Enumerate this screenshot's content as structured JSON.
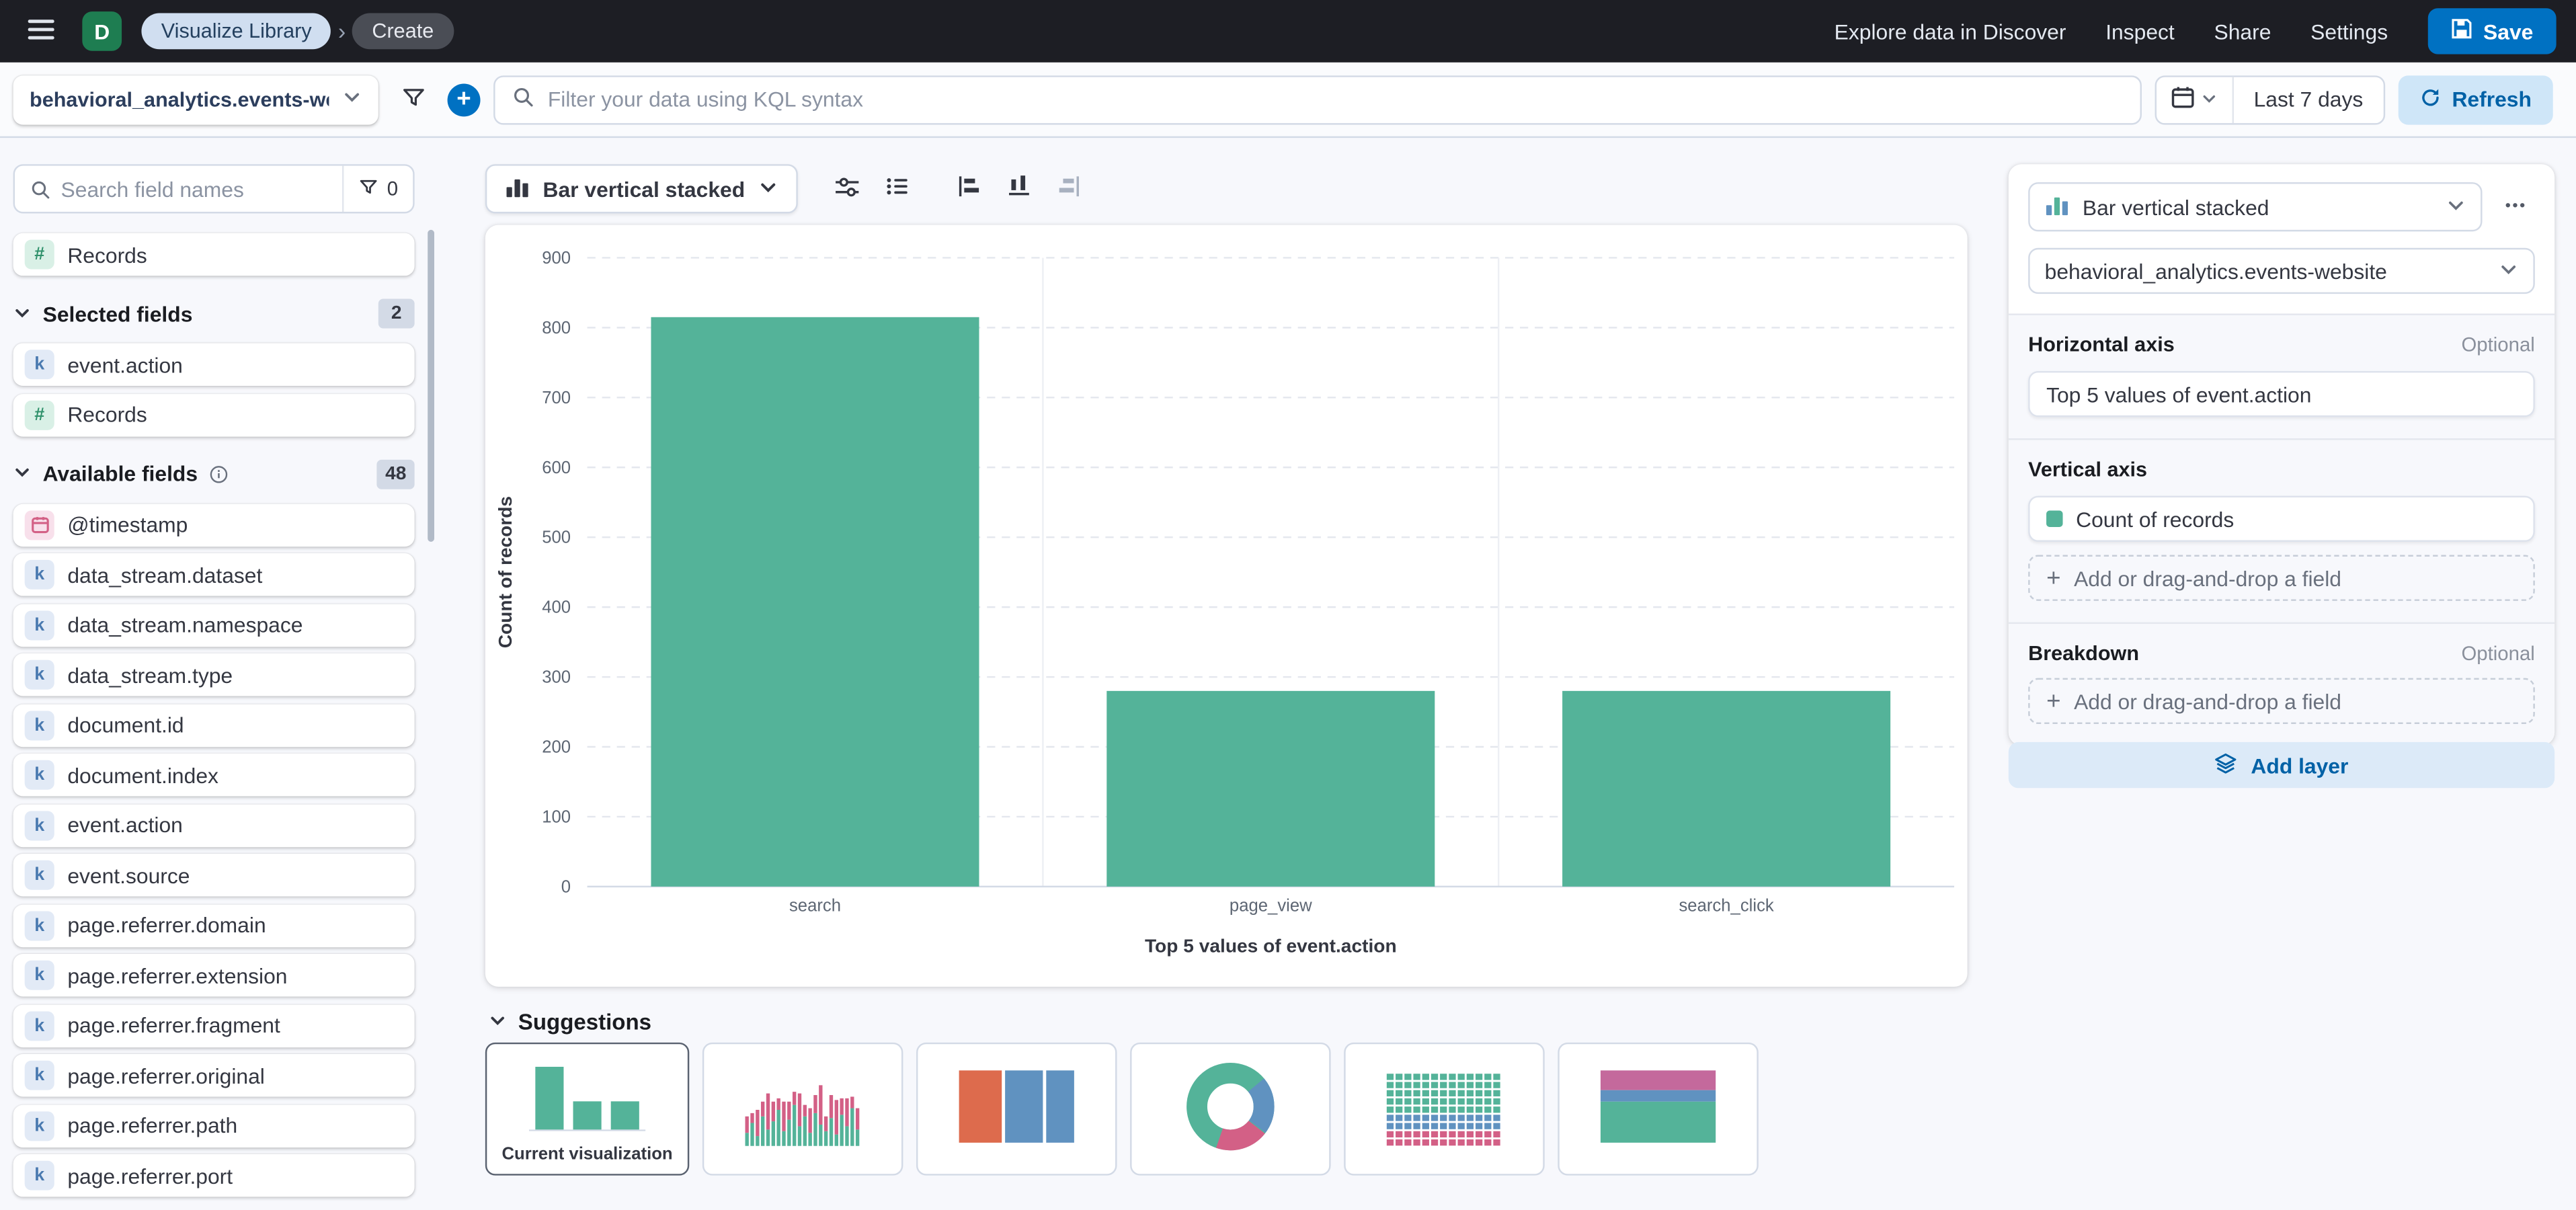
{
  "header": {
    "space_initial": "D",
    "breadcrumbs": {
      "first": "Visualize Library",
      "second": "Create"
    },
    "links": [
      "Explore data in Discover",
      "Inspect",
      "Share",
      "Settings"
    ],
    "save_label": "Save"
  },
  "query_bar": {
    "data_view_short": "behavioral_analytics.events-web...",
    "kql_placeholder": "Filter your data using KQL syntax",
    "time_range": "Last 7 days",
    "refresh_label": "Refresh"
  },
  "sidebar": {
    "search_placeholder": "Search field names",
    "filter_count": "0",
    "records_field": {
      "name": "Records",
      "type": "number"
    },
    "selected": {
      "label": "Selected fields",
      "count": "2",
      "fields": [
        {
          "name": "event.action",
          "type": "keyword"
        },
        {
          "name": "Records",
          "type": "number"
        }
      ]
    },
    "available": {
      "label": "Available fields",
      "count": "48",
      "fields": [
        {
          "name": "@timestamp",
          "type": "date"
        },
        {
          "name": "data_stream.dataset",
          "type": "keyword"
        },
        {
          "name": "data_stream.namespace",
          "type": "keyword"
        },
        {
          "name": "data_stream.type",
          "type": "keyword"
        },
        {
          "name": "document.id",
          "type": "keyword"
        },
        {
          "name": "document.index",
          "type": "keyword"
        },
        {
          "name": "event.action",
          "type": "keyword"
        },
        {
          "name": "event.source",
          "type": "keyword"
        },
        {
          "name": "page.referrer.domain",
          "type": "keyword"
        },
        {
          "name": "page.referrer.extension",
          "type": "keyword"
        },
        {
          "name": "page.referrer.fragment",
          "type": "keyword"
        },
        {
          "name": "page.referrer.original",
          "type": "keyword"
        },
        {
          "name": "page.referrer.path",
          "type": "keyword"
        },
        {
          "name": "page.referrer.port",
          "type": "keyword"
        }
      ]
    }
  },
  "chart_toolbar": {
    "chart_type": "Bar vertical stacked"
  },
  "chart_data": {
    "type": "bar",
    "categories": [
      "search",
      "page_view",
      "search_click"
    ],
    "values": [
      815,
      280,
      280
    ],
    "series_name": "Count of records",
    "title": "",
    "xlabel": "Top 5 values of event.action",
    "ylabel": "Count of records",
    "ylim": [
      0,
      900
    ],
    "ytick_step": 100,
    "bar_color": "#54b399",
    "grid": true,
    "legend": false
  },
  "suggestions": {
    "label": "Suggestions",
    "current_label": "Current visualization"
  },
  "config_panel": {
    "chart_type": "Bar vertical stacked",
    "data_view": "behavioral_analytics.events-website",
    "horizontal": {
      "label": "Horizontal axis",
      "optional": "Optional",
      "value": "Top 5 values of event.action"
    },
    "vertical": {
      "label": "Vertical axis",
      "value": "Count of records",
      "swatch": "#54b399",
      "add_label": "Add or drag-and-drop a field"
    },
    "breakdown": {
      "label": "Breakdown",
      "optional": "Optional",
      "add_label": "Add or drag-and-drop a field"
    },
    "add_layer_label": "Add layer"
  }
}
